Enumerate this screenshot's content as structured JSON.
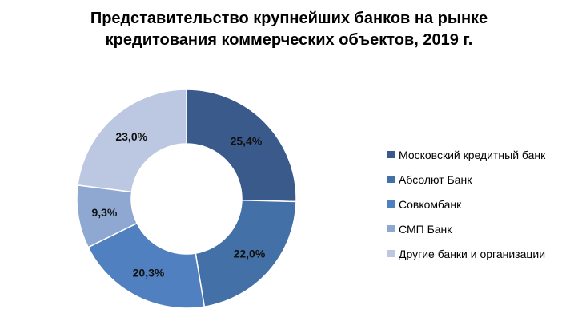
{
  "chart_data": {
    "type": "pie",
    "donut": true,
    "title": "Представительство крупнейших банков на рынке кредитования коммерческих объектов, 2019 г.",
    "title_lines": [
      "Представительство крупнейших банков на рынке",
      "кредитования коммерческих объектов, 2019 г."
    ],
    "legend_position": "right",
    "slices": [
      {
        "name": "Московский кредитный банк",
        "value": 25.4,
        "label": "25,4%",
        "color": "#3a5a8c"
      },
      {
        "name": "Абсолют Банк",
        "value": 22.0,
        "label": "22,0%",
        "color": "#4470a8"
      },
      {
        "name": "Совкомбанк",
        "value": 20.3,
        "label": "20,3%",
        "color": "#5080c0"
      },
      {
        "name": "СМП Банк",
        "value": 9.3,
        "label": "9,3%",
        "color": "#8ea8d2"
      },
      {
        "name": "Другие банки и организации",
        "value": 23.0,
        "label": "23,0%",
        "color": "#bcc8e2"
      }
    ]
  }
}
